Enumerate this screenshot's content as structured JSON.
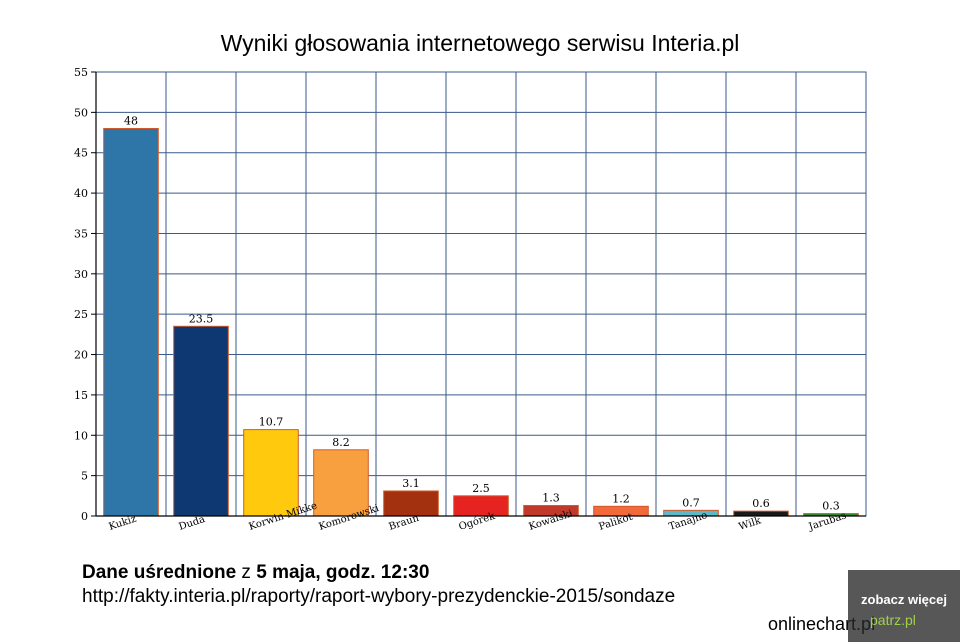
{
  "chart_data": {
    "type": "bar",
    "title": "Wyniki głosowania internetowego serwisu Interia.pl",
    "xlabel": "",
    "ylabel": "",
    "categories": [
      "Kukiz",
      "Duda",
      "Korwin-Mikke",
      "Komorowski",
      "Braun",
      "Ogórek",
      "Kowalski",
      "Palikot",
      "Tanajno",
      "Wilk",
      "Jarubas"
    ],
    "values": [
      48,
      23.5,
      10.7,
      8.2,
      3.1,
      2.5,
      1.3,
      1.2,
      0.7,
      0.6,
      0.3
    ],
    "value_labels": [
      "48",
      "23.5",
      "10.7",
      "8.2",
      "3.1",
      "2.5",
      "1.3",
      "1.2",
      "0.7",
      "0.6",
      "0.3"
    ],
    "colors": [
      "#2e75a8",
      "#0d3872",
      "#ffc90e",
      "#f8a040",
      "#a3300e",
      "#e52422",
      "#c0392b",
      "#f26a3c",
      "#5db8c9",
      "#1a1a1a",
      "#2a8a2a"
    ],
    "ylim": [
      0,
      55
    ],
    "yticks": [
      0,
      5,
      10,
      15,
      20,
      25,
      30,
      35,
      40,
      45,
      50,
      55
    ],
    "grid": true,
    "grid_color": "#3a5a8a",
    "legend": "none"
  },
  "footer": {
    "line1_bold_a": "Dane uśrednione",
    "line1_mid": " z ",
    "line1_bold_b": "5 maja, godz. 12:30",
    "line2": "http://fakty.interia.pl/raporty/raport-wybory-prezydenckie-2015/sondaze"
  },
  "watermark": "onlinechart.pl",
  "badge": {
    "text": "zobacz więcej",
    "logo": "patrz.pl"
  }
}
